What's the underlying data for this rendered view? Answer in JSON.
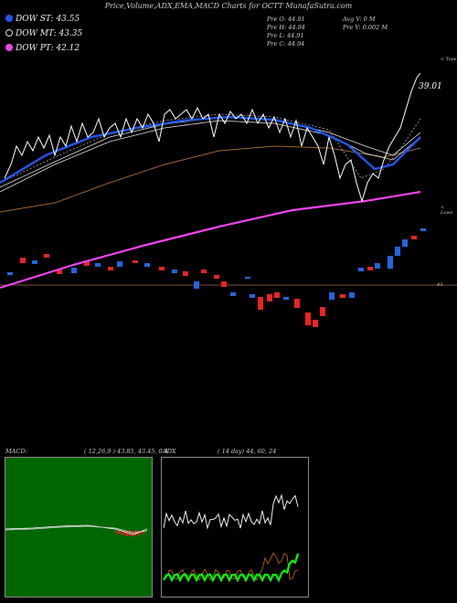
{
  "header": {
    "title": "Price,Volume,ADX,EMA,MACD Charts for OCTT MunafaSutra.com"
  },
  "legend": [
    {
      "label": "DOW ST: 43.55",
      "color": "#2255ee"
    },
    {
      "label": "DOW MT: 43.35",
      "color": "#dddddd"
    },
    {
      "label": "DOW PT: 42.12",
      "color": "#ee44ee"
    }
  ],
  "quote": {
    "open": "Pre O: 44.91",
    "high": "Pre H: 44.94",
    "low": "Pre L: 44.91",
    "close": "Pre C: 44.94",
    "avg_vol": "Avg V: 0 M",
    "vol": "Pre V: 0.002 M"
  },
  "labels": {
    "last_price": "39.01",
    "top_tag": "< Tops",
    "low_tag": "< Lows",
    "mid_level": "43"
  },
  "colors": {
    "price_line": "#ffffff",
    "ema_short": "#2255ee",
    "ema_mid": "#dddddd",
    "ema_long": "#996633",
    "ema_pt": "#ee44ee",
    "bull_candle": "#2266dd",
    "bear_candle": "#ee2222",
    "macd_bg": "#006600",
    "adx_line": "#00ff00",
    "adx_di": "#cc6600"
  },
  "chart_data": [
    {
      "type": "line",
      "title": "Price,Volume,ADX,EMA,MACD Charts for OCTT",
      "series": [
        {
          "name": "DOW ST",
          "last": 43.55
        },
        {
          "name": "DOW MT",
          "last": 43.35
        },
        {
          "name": "DOW PT",
          "last": 42.12
        }
      ],
      "last_close": 39.01,
      "reference_level": 43
    },
    {
      "type": "line",
      "title": "MACD",
      "params": "( 12,26,9 ) 43.85, 43.45, 0.4"
    },
    {
      "type": "line",
      "title": "ADX",
      "params": "( 14 day) 44, 60, 24"
    }
  ],
  "panels": {
    "macd_title": "MACD:",
    "macd_params": "( 12,26,9 ) 43.85, 43.45, 0.4",
    "adx_title": "ADX",
    "adx_params": "( 14  day) 44,  60,  24"
  }
}
